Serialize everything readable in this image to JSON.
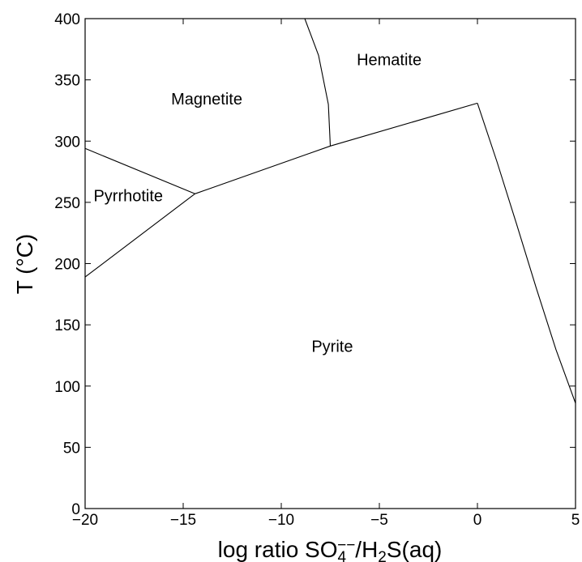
{
  "chart_data": {
    "type": "line",
    "title": "",
    "xlabel": {
      "base": "log ratio SO",
      "sub1": "4",
      "sup1": "−−",
      "mid": "/H",
      "sub2": "2",
      "tail": "S(aq)"
    },
    "ylabel": "T (°C)",
    "xlim": [
      -20,
      5
    ],
    "ylim": [
      0,
      400
    ],
    "xticks": [
      -20,
      -15,
      -10,
      -5,
      0,
      5
    ],
    "yticks": [
      0,
      50,
      100,
      150,
      200,
      250,
      300,
      350,
      400
    ],
    "xtick_labels": [
      "−20",
      "−15",
      "−10",
      "−5",
      "0",
      "5"
    ],
    "ytick_labels": [
      "0",
      "50",
      "100",
      "150",
      "200",
      "250",
      "300",
      "350",
      "400"
    ],
    "grid": false,
    "series": [
      {
        "x": [
          -20,
          -14.4
        ],
        "y": [
          294,
          257
        ]
      },
      {
        "x": [
          -20,
          -14.4
        ],
        "y": [
          189,
          257
        ]
      },
      {
        "x": [
          -14.4,
          -7.5,
          0
        ],
        "y": [
          257,
          296,
          331
        ]
      },
      {
        "x": [
          -8.8,
          -8.1,
          -7.6,
          -7.5
        ],
        "y": [
          400,
          370,
          330,
          296
        ]
      },
      {
        "x": [
          0,
          1.0,
          2.0,
          3.0,
          4.0,
          5.0
        ],
        "y": [
          331,
          283,
          232,
          180,
          130,
          86
        ]
      }
    ],
    "annotations": [
      {
        "text": "Hematite",
        "x": -4.5,
        "y": 362
      },
      {
        "text": "Magnetite",
        "x": -13.8,
        "y": 330
      },
      {
        "text": "Pyrrhotite",
        "x": -17.8,
        "y": 251
      },
      {
        "text": "Pyrite",
        "x": -7.4,
        "y": 128
      }
    ]
  }
}
